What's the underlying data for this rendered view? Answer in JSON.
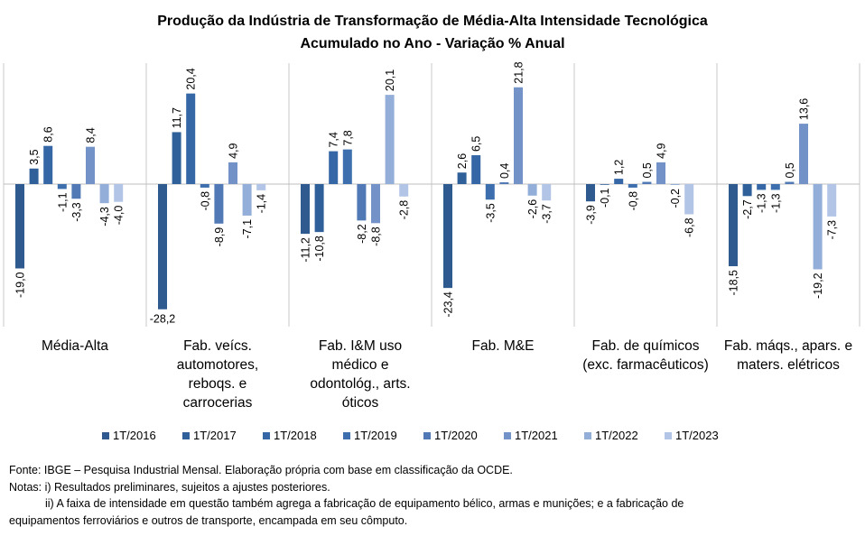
{
  "chart_data": {
    "type": "bar",
    "title": "Produção da Indústria de Transformação de Média-Alta Intensidade Tecnológica",
    "subtitle": "Acumulado no Ano - Variação % Anual",
    "categories": [
      [
        "Média-Alta"
      ],
      [
        "Fab. veícs.",
        "automotores,",
        "reboqs. e",
        "carrocerias"
      ],
      [
        "Fab. I&M uso",
        "médico e",
        "odontológ., arts.",
        "óticos"
      ],
      [
        "Fab. M&E"
      ],
      [
        "Fab. de químicos",
        "(exc. farmacêuticos)"
      ],
      [
        "Fab. máqs., apars. e",
        "maters. elétricos"
      ]
    ],
    "series": [
      {
        "name": "1T/2016",
        "color": "#2E5A8F",
        "values": [
          -19.0,
          -28.2,
          -11.2,
          -23.4,
          -3.9,
          -18.5
        ],
        "labels": [
          "-19,0",
          "-28,2",
          "-11,2",
          "-23,4",
          "-3,9",
          "-18,5"
        ]
      },
      {
        "name": "1T/2017",
        "color": "#30609A",
        "values": [
          3.5,
          11.7,
          -10.8,
          2.6,
          -0.1,
          -2.7
        ],
        "labels": [
          "3,5",
          "11,7",
          "-10,8",
          "2,6",
          "-0,1",
          "-2,7"
        ]
      },
      {
        "name": "1T/2018",
        "color": "#3566A5",
        "values": [
          8.6,
          20.4,
          7.4,
          6.5,
          1.2,
          -1.3
        ],
        "labels": [
          "8,6",
          "20,4",
          "7,4",
          "6,5",
          "1,2",
          "-1,3"
        ]
      },
      {
        "name": "1T/2019",
        "color": "#3D6FAE",
        "values": [
          -1.1,
          -0.8,
          7.8,
          -3.5,
          -0.8,
          -1.3
        ],
        "labels": [
          "-1,1",
          "-0,8",
          "7,8",
          "-3,5",
          "-0,8",
          "-1,3"
        ]
      },
      {
        "name": "1T/2020",
        "color": "#5079B5",
        "values": [
          -3.3,
          -8.9,
          -8.2,
          0.4,
          0.5,
          0.5
        ],
        "labels": [
          "-3,3",
          "-8,9",
          "-8,2",
          "0,4",
          "0,5",
          "0,5"
        ]
      },
      {
        "name": "1T/2021",
        "color": "#7393C8",
        "values": [
          8.4,
          4.9,
          -8.8,
          21.8,
          4.9,
          13.6
        ],
        "labels": [
          "8,4",
          "4,9",
          "-8,8",
          "21,8",
          "4,9",
          "13,6"
        ]
      },
      {
        "name": "1T/2022",
        "color": "#93AED8",
        "values": [
          -4.3,
          -7.1,
          20.1,
          -2.6,
          -0.2,
          -19.2
        ],
        "labels": [
          "-4,3",
          "-7,1",
          "20,1",
          "-2,6",
          "-0,2",
          "-19,2"
        ]
      },
      {
        "name": "1T/2023",
        "color": "#B2C5E6",
        "values": [
          -4.0,
          -1.4,
          -2.8,
          -3.7,
          -6.8,
          -7.3
        ],
        "labels": [
          "-4,0",
          "-1,4",
          "-2,8",
          "-3,7",
          "-6,8",
          "-7,3"
        ]
      }
    ],
    "ylim": [
      -30,
      28
    ],
    "grid": false,
    "legend_position": "bottom"
  },
  "notes": {
    "source": "Fonte: IBGE – Pesquisa Industrial Mensal. Elaboração própria com base em classificação da OCDE.",
    "note_i": "Notas: i) Resultados preliminares, sujeitos a ajustes posteriores.",
    "note_ii_line1": "ii) A faixa de intensidade em questão também agrega a fabricação de equipamento bélico, armas e munições; e a fabricação de",
    "note_ii_line2": "equipamentos ferroviários e outros de transporte, encampada em seu cômputo."
  }
}
